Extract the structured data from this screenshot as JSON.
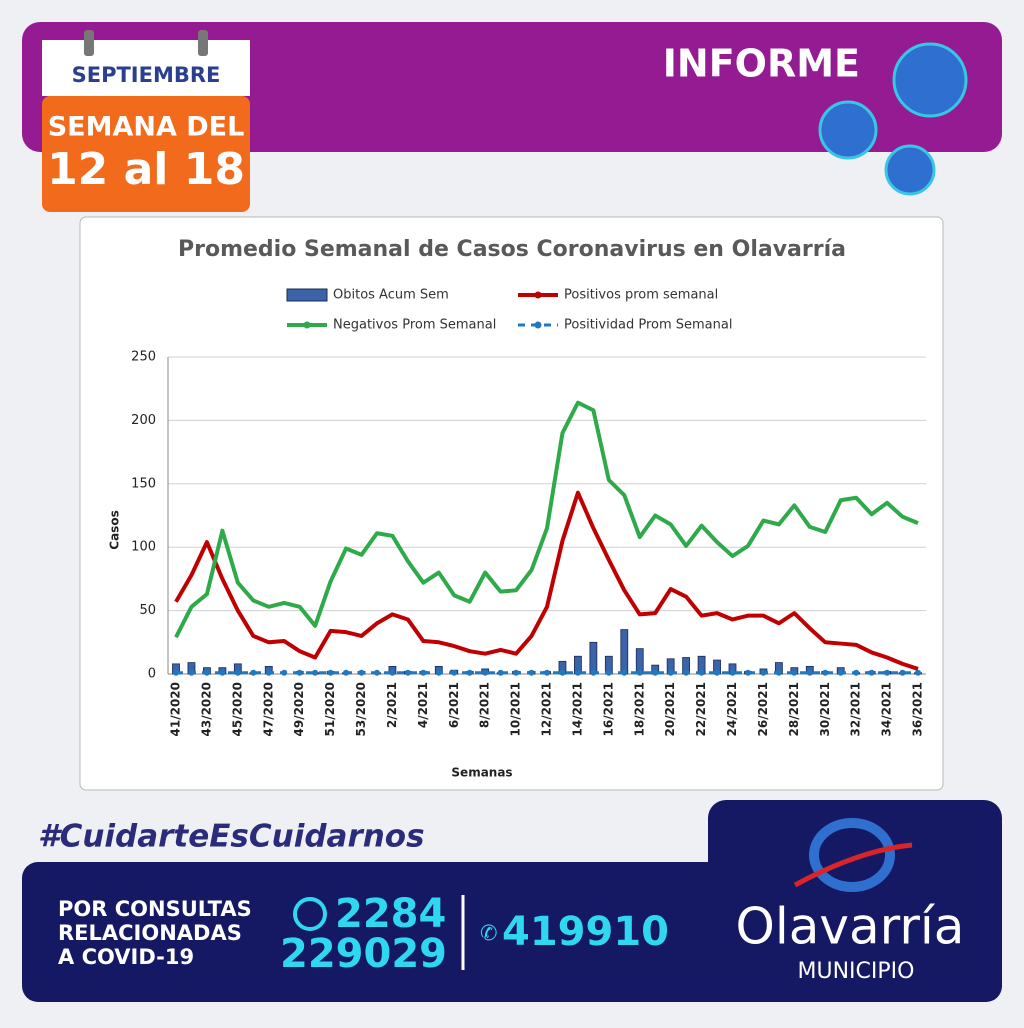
{
  "header": {
    "month": "SEPTIEMBRE",
    "week_label": "SEMANA DEL",
    "week_range": "12 al 18",
    "title": "INFORME"
  },
  "chart_data": {
    "type": "line",
    "title": "Promedio Semanal de Casos Coronavirus en Olavarría",
    "x_label": "Semanas",
    "y_label": "Casos",
    "categories": [
      "41/2020",
      null,
      "43/2020",
      null,
      "45/2020",
      null,
      "47/2020",
      null,
      "49/2020",
      null,
      "51/2020",
      null,
      "53/2020",
      null,
      "2/2021",
      null,
      "4/2021",
      null,
      "6/2021",
      null,
      "8/2021",
      null,
      "10/2021",
      null,
      "12/2021",
      null,
      "14/2021",
      null,
      "16/2021",
      null,
      "18/2021",
      null,
      "20/2021",
      null,
      "22/2021",
      null,
      "24/2021",
      null,
      "26/2021",
      null,
      "28/2021",
      null,
      "30/2021",
      null,
      "32/2021",
      null,
      "34/2021",
      null,
      "36/2021"
    ],
    "series": [
      {
        "name": "Obitos Acum Sem",
        "type": "bar",
        "color": "#3b63a8",
        "values": [
          8,
          9,
          5,
          5,
          8,
          1,
          6,
          0,
          2,
          1,
          2,
          1,
          2,
          1,
          6,
          2,
          2,
          6,
          3,
          2,
          4,
          1,
          2,
          2,
          2,
          10,
          14,
          25,
          14,
          35,
          20,
          7,
          12,
          13,
          14,
          11,
          8,
          2,
          4,
          9,
          5,
          6,
          2,
          5,
          1,
          2,
          2,
          1,
          1
        ]
      },
      {
        "name": "Positivos prom semanal",
        "type": "line",
        "color": "#c00000",
        "values": [
          57,
          78,
          104,
          75,
          50,
          30,
          25,
          26,
          18,
          13,
          34,
          33,
          30,
          40,
          47,
          43,
          26,
          25,
          22,
          18,
          16,
          19,
          16,
          30,
          53,
          105,
          143,
          115,
          90,
          66,
          47,
          48,
          67,
          61,
          46,
          48,
          43,
          46,
          46,
          40,
          48,
          36,
          25,
          24,
          23,
          17,
          13,
          8,
          4
        ]
      },
      {
        "name": "Negativos Prom Semanal",
        "type": "line",
        "color": "#2eaa4a",
        "values": [
          29,
          53,
          63,
          113,
          72,
          58,
          53,
          56,
          53,
          38,
          73,
          99,
          94,
          111,
          109,
          89,
          72,
          80,
          62,
          57,
          80,
          65,
          66,
          82,
          115,
          190,
          214,
          208,
          153,
          141,
          108,
          125,
          118,
          101,
          117,
          104,
          93,
          101,
          121,
          118,
          133,
          116,
          112,
          137,
          139,
          126,
          135,
          124,
          119
        ]
      },
      {
        "name": "Positividad Prom Semanal",
        "type": "dashed",
        "color": "#1f78c1",
        "values": [
          1,
          1,
          1,
          1,
          1,
          1,
          1,
          1,
          1,
          1,
          1,
          1,
          1,
          1,
          1,
          1,
          1,
          1,
          1,
          1,
          1,
          1,
          1,
          1,
          1,
          1,
          1,
          1,
          1,
          1,
          1,
          1,
          1,
          1,
          1,
          1,
          1,
          1,
          1,
          1,
          1,
          1,
          1,
          1,
          1,
          1,
          1,
          1,
          1
        ]
      }
    ],
    "ylim": [
      0,
      250
    ],
    "yticks": [
      0,
      50,
      100,
      150,
      200,
      250
    ],
    "grid": true
  },
  "footer": {
    "hashtag": "#CuidarteEsCuidarnos",
    "consult": [
      "POR CONSULTAS",
      "RELACIONADAS",
      "A COVID-19"
    ],
    "whatsapp": [
      "2284",
      "229029"
    ],
    "phone": "419910",
    "brand": "Olavarría",
    "brand_sub": "MUNICIPIO"
  }
}
